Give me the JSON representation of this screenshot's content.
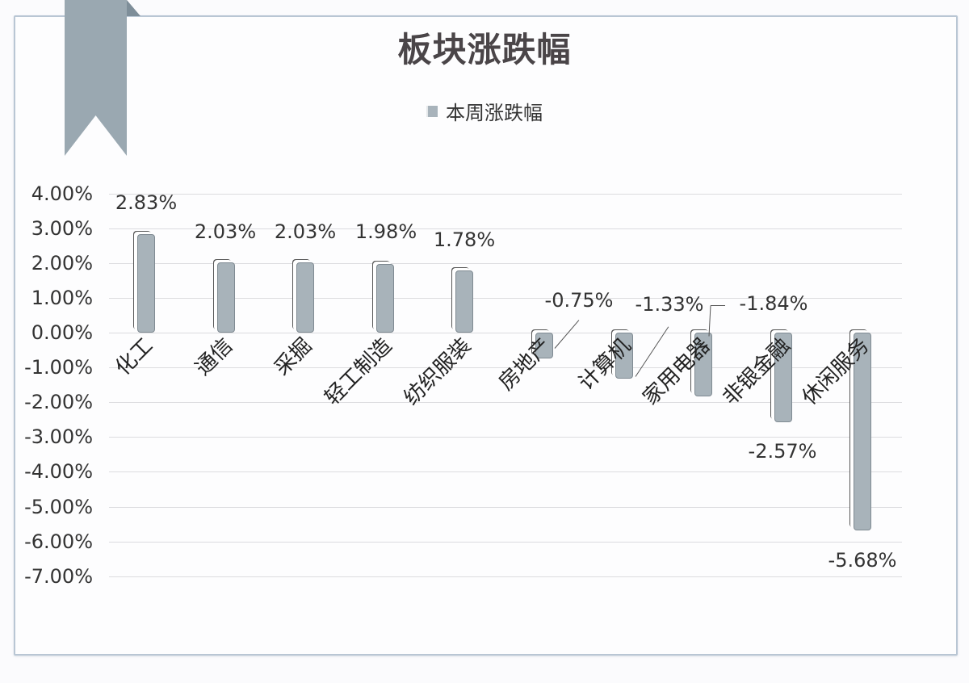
{
  "chart_data": {
    "type": "bar",
    "title": "板块涨跌幅",
    "legend": [
      "本周涨跌幅"
    ],
    "legend_position": "top",
    "categories": [
      "化工",
      "通信",
      "采掘",
      "轻工制造",
      "纺织服装",
      "房地产",
      "计算机",
      "家用电器",
      "非银金融",
      "休闲服务"
    ],
    "series": [
      {
        "name": "本周涨跌幅",
        "values": [
          2.83,
          2.03,
          2.03,
          1.98,
          1.78,
          -0.75,
          -1.33,
          -1.84,
          -2.57,
          -5.68
        ]
      }
    ],
    "data_labels": [
      "2.83%",
      "2.03%",
      "2.03%",
      "1.98%",
      "1.78%",
      "-0.75%",
      "-1.33%",
      "-1.84%",
      "-2.57%",
      "-5.68%"
    ],
    "xlabel": "",
    "ylabel": "",
    "ylim": [
      -7,
      4
    ],
    "yticks": [
      "4.00%",
      "3.00%",
      "2.00%",
      "1.00%",
      "0.00%",
      "-1.00%",
      "-2.00%",
      "-3.00%",
      "-4.00%",
      "-5.00%",
      "-6.00%",
      "-7.00%"
    ],
    "grid": true,
    "color": "#a8b3ba"
  },
  "header": {
    "title": "板块涨跌幅",
    "legend_label": "本周涨跌幅"
  }
}
